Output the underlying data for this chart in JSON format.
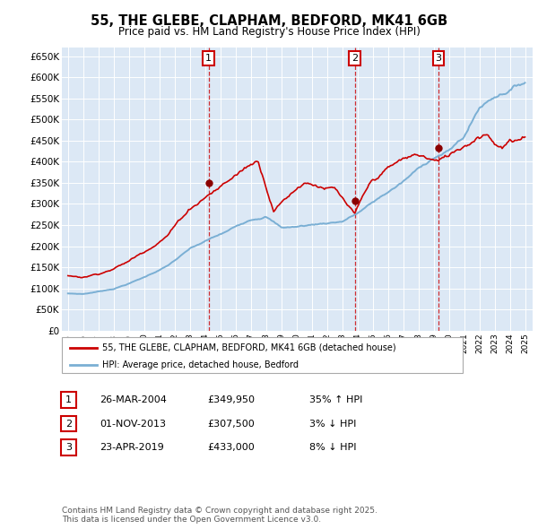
{
  "title": "55, THE GLEBE, CLAPHAM, BEDFORD, MK41 6GB",
  "subtitle": "Price paid vs. HM Land Registry's House Price Index (HPI)",
  "plot_bg_color": "#dce8f5",
  "hpi_color": "#7aafd4",
  "price_color": "#cc0000",
  "yticks": [
    0,
    50000,
    100000,
    150000,
    200000,
    250000,
    300000,
    350000,
    400000,
    450000,
    500000,
    550000,
    600000,
    650000
  ],
  "ytick_labels": [
    "£0",
    "£50K",
    "£100K",
    "£150K",
    "£200K",
    "£250K",
    "£300K",
    "£350K",
    "£400K",
    "£450K",
    "£500K",
    "£550K",
    "£600K",
    "£650K"
  ],
  "sale_years": [
    2004.23,
    2013.83,
    2019.31
  ],
  "sale_prices": [
    349950,
    307500,
    433000
  ],
  "legend_entries": [
    "55, THE GLEBE, CLAPHAM, BEDFORD, MK41 6GB (detached house)",
    "HPI: Average price, detached house, Bedford"
  ],
  "footer_text": "Contains HM Land Registry data © Crown copyright and database right 2025.\nThis data is licensed under the Open Government Licence v3.0.",
  "table_rows": [
    {
      "num": 1,
      "date": "26-MAR-2004",
      "price": "£349,950",
      "pct_hpi": "35% ↑ HPI"
    },
    {
      "num": 2,
      "date": "01-NOV-2013",
      "price": "£307,500",
      "pct_hpi": "3% ↓ HPI"
    },
    {
      "num": 3,
      "date": "23-APR-2019",
      "price": "£433,000",
      "pct_hpi": "8% ↓ HPI"
    }
  ]
}
